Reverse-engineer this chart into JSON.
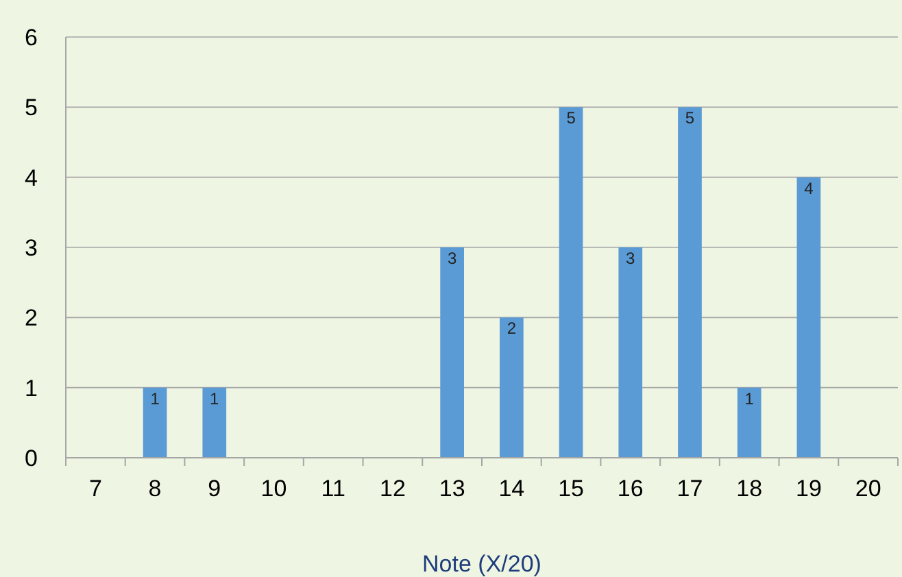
{
  "chart_data": {
    "type": "bar",
    "xlabel": "Note (X/20)",
    "categories": [
      "7",
      "8",
      "9",
      "10",
      "11",
      "12",
      "13",
      "14",
      "15",
      "16",
      "17",
      "18",
      "19",
      "20"
    ],
    "values": [
      0,
      1,
      1,
      0,
      0,
      0,
      3,
      2,
      5,
      3,
      5,
      1,
      4,
      0
    ],
    "value_labels": [
      null,
      "1",
      "1",
      null,
      null,
      null,
      "3",
      "2",
      "5",
      "3",
      "5",
      "1",
      "4",
      null
    ],
    "color": "#5b9bd5",
    "ylim": [
      0,
      6
    ],
    "yticks": [
      0,
      1,
      2,
      3,
      4,
      5,
      6
    ],
    "grid": "y"
  }
}
